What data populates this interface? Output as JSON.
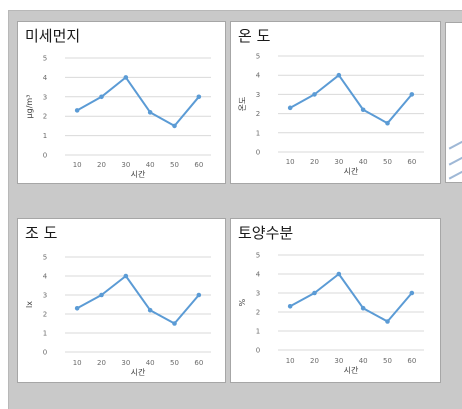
{
  "colors": {
    "series": "#5b9bd5",
    "grid": "#d9d9d9",
    "background": "#c9c9c9"
  },
  "chart_data": [
    {
      "type": "line",
      "title": "미세먼지",
      "xlabel": "시간",
      "ylabel": "μg/m³",
      "x": [
        10,
        20,
        30,
        40,
        50,
        60
      ],
      "y_ticks": [
        0,
        1,
        2,
        3,
        4,
        5
      ],
      "ylim": [
        0,
        5
      ],
      "grid": true,
      "series": [
        {
          "values": [
            2.3,
            3.0,
            4.0,
            2.2,
            1.5,
            3.0
          ]
        }
      ]
    },
    {
      "type": "line",
      "title": "온 도",
      "xlabel": "시간",
      "ylabel": "온도",
      "x": [
        10,
        20,
        30,
        40,
        50,
        60
      ],
      "y_ticks": [
        0,
        1,
        2,
        3,
        4,
        5
      ],
      "ylim": [
        0,
        5
      ],
      "grid": true,
      "series": [
        {
          "values": [
            2.3,
            3.0,
            4.0,
            2.2,
            1.5,
            3.0
          ]
        }
      ]
    },
    {
      "type": "line",
      "title": "조 도",
      "xlabel": "시간",
      "ylabel": "lx",
      "x": [
        10,
        20,
        30,
        40,
        50,
        60
      ],
      "y_ticks": [
        0,
        1,
        2,
        3,
        4,
        5
      ],
      "ylim": [
        0,
        5
      ],
      "grid": true,
      "series": [
        {
          "values": [
            2.3,
            3.0,
            4.0,
            2.2,
            1.5,
            3.0
          ]
        }
      ]
    },
    {
      "type": "line",
      "title": "토양수분",
      "xlabel": "시간",
      "ylabel": "%",
      "x": [
        10,
        20,
        30,
        40,
        50,
        60
      ],
      "y_ticks": [
        0,
        1,
        2,
        3,
        4,
        5
      ],
      "ylim": [
        0,
        5
      ],
      "grid": true,
      "series": [
        {
          "values": [
            2.3,
            3.0,
            4.0,
            2.2,
            1.5,
            3.0
          ]
        }
      ]
    }
  ]
}
